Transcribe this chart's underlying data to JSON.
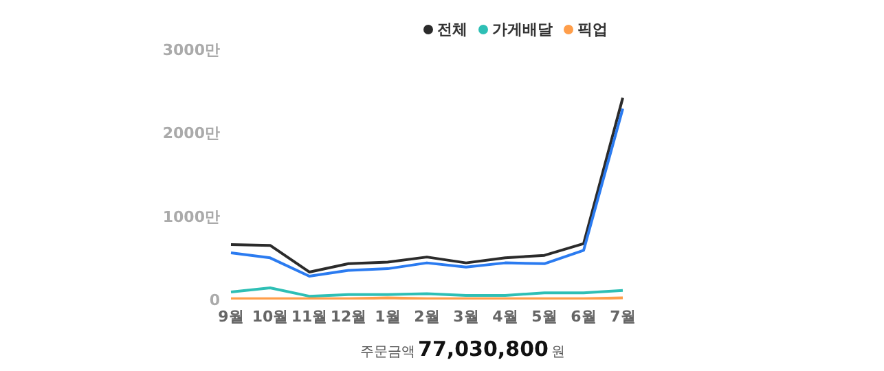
{
  "chart_data": {
    "type": "line",
    "categories": [
      "9월",
      "10월",
      "11월",
      "12월",
      "1월",
      "2월",
      "3월",
      "4월",
      "5월",
      "6월",
      "7월"
    ],
    "series": [
      {
        "name": "전체",
        "color": "#2b2b2b",
        "values": [
          660,
          650,
          330,
          430,
          450,
          510,
          440,
          500,
          530,
          670,
          2420
        ]
      },
      {
        "name": "가게배달",
        "color": "#2ebfb5",
        "values": [
          90,
          140,
          40,
          60,
          60,
          70,
          50,
          50,
          80,
          80,
          110
        ]
      },
      {
        "name": "픽업",
        "color": "#ff9e4a",
        "values": [
          10,
          10,
          10,
          10,
          20,
          10,
          10,
          10,
          10,
          10,
          20
        ]
      },
      {
        "color": "#2b7bf0",
        "values": [
          560,
          500,
          280,
          350,
          370,
          440,
          390,
          440,
          430,
          590,
          2290
        ]
      }
    ],
    "ylim": [
      0,
      3000
    ],
    "yticks": [
      0,
      {
        "value": 1000,
        "label": "1000만"
      },
      {
        "value": 2000,
        "label": "2000만"
      },
      {
        "value": 3000,
        "label": "3000만"
      }
    ],
    "grid": false,
    "legend": "top right",
    "annotations": [
      "주문금액",
      "77,030,800",
      "원"
    ]
  }
}
